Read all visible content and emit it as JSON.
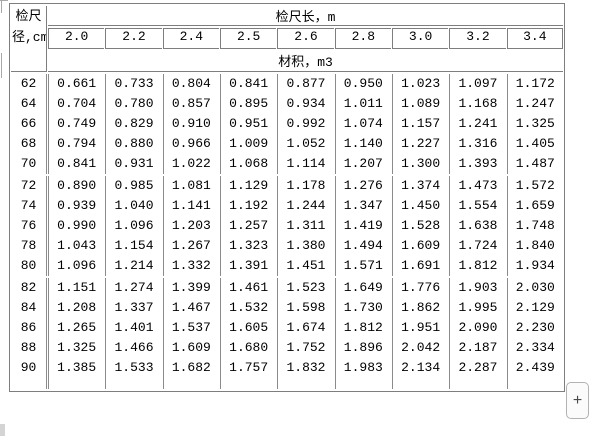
{
  "header": {
    "corner_line1": "检尺",
    "corner_line2": "径,cm",
    "length_label": "检尺长，m",
    "volume_label": "材积，m3",
    "lengths": [
      "2.0",
      "2.2",
      "2.4",
      "2.5",
      "2.6",
      "2.8",
      "3.0",
      "3.2",
      "3.4"
    ]
  },
  "groups": [
    {
      "diameters": [
        "62",
        "64",
        "66",
        "68",
        "70"
      ],
      "rows": [
        [
          "0.661",
          "0.733",
          "0.804",
          "0.841",
          "0.877",
          "0.950",
          "1.023",
          "1.097",
          "1.172"
        ],
        [
          "0.704",
          "0.780",
          "0.857",
          "0.895",
          "0.934",
          "1.011",
          "1.089",
          "1.168",
          "1.247"
        ],
        [
          "0.749",
          "0.829",
          "0.910",
          "0.951",
          "0.992",
          "1.074",
          "1.157",
          "1.241",
          "1.325"
        ],
        [
          "0.794",
          "0.880",
          "0.966",
          "1.009",
          "1.052",
          "1.140",
          "1.227",
          "1.316",
          "1.405"
        ],
        [
          "0.841",
          "0.931",
          "1.022",
          "1.068",
          "1.114",
          "1.207",
          "1.300",
          "1.393",
          "1.487"
        ]
      ]
    },
    {
      "diameters": [
        "72",
        "74",
        "76",
        "78",
        "80"
      ],
      "rows": [
        [
          "0.890",
          "0.985",
          "1.081",
          "1.129",
          "1.178",
          "1.276",
          "1.374",
          "1.473",
          "1.572"
        ],
        [
          "0.939",
          "1.040",
          "1.141",
          "1.192",
          "1.244",
          "1.347",
          "1.450",
          "1.554",
          "1.659"
        ],
        [
          "0.990",
          "1.096",
          "1.203",
          "1.257",
          "1.311",
          "1.419",
          "1.528",
          "1.638",
          "1.748"
        ],
        [
          "1.043",
          "1.154",
          "1.267",
          "1.323",
          "1.380",
          "1.494",
          "1.609",
          "1.724",
          "1.840"
        ],
        [
          "1.096",
          "1.214",
          "1.332",
          "1.391",
          "1.451",
          "1.571",
          "1.691",
          "1.812",
          "1.934"
        ]
      ]
    },
    {
      "diameters": [
        "82",
        "84",
        "86",
        "88",
        "90"
      ],
      "rows": [
        [
          "1.151",
          "1.274",
          "1.399",
          "1.461",
          "1.523",
          "1.649",
          "1.776",
          "1.903",
          "2.030"
        ],
        [
          "1.208",
          "1.337",
          "1.467",
          "1.532",
          "1.598",
          "1.730",
          "1.862",
          "1.995",
          "2.129"
        ],
        [
          "1.265",
          "1.401",
          "1.537",
          "1.605",
          "1.674",
          "1.812",
          "1.951",
          "2.090",
          "2.230"
        ],
        [
          "1.325",
          "1.466",
          "1.609",
          "1.680",
          "1.752",
          "1.896",
          "2.042",
          "2.187",
          "2.334"
        ],
        [
          "1.385",
          "1.533",
          "1.682",
          "1.757",
          "1.832",
          "1.983",
          "2.134",
          "2.287",
          "2.439"
        ]
      ]
    }
  ],
  "controls": {
    "expand_button_label": "+"
  }
}
